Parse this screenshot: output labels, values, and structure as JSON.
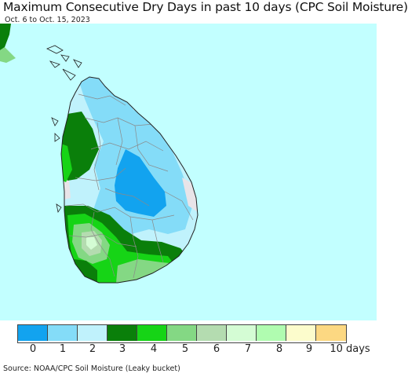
{
  "title": "Maximum Consecutive Dry Days in past 10 days (CPC Soil Moisture)",
  "subtitle": "Oct. 6 to Oct. 15, 2023",
  "source": "Source: NOAA/CPC Soil Moisture (Leaky bucket)",
  "colors": {
    "ocean": "#c2ffff",
    "no_data": "#e8e4e8",
    "class_0": "#12a3ef",
    "class_1": "#84dcf8",
    "class_2": "#c0f2fc",
    "class_3": "#0a7f0a",
    "class_4": "#16d416",
    "class_5": "#84d884",
    "class_6": "#b4dcb0",
    "class_7": "#d4fcd4",
    "class_8": "#b0fcb0",
    "class_9": "#fcfccc",
    "class_10": "#fcd882"
  },
  "legend": {
    "classes": [
      {
        "label": "0",
        "color": "#12a3ef"
      },
      {
        "label": "1",
        "color": "#84dcf8"
      },
      {
        "label": "2",
        "color": "#c0f2fc"
      },
      {
        "label": "3",
        "color": "#0a7f0a"
      },
      {
        "label": "4",
        "color": "#16d416"
      },
      {
        "label": "5",
        "color": "#84d884"
      },
      {
        "label": "6",
        "color": "#b4dcb0"
      },
      {
        "label": "7",
        "color": "#d4fcd4"
      },
      {
        "label": "8",
        "color": "#b0fcb0"
      },
      {
        "label": "9",
        "color": "#fcfccc"
      },
      {
        "label": "10 days",
        "color": "#fcd882"
      }
    ]
  }
}
